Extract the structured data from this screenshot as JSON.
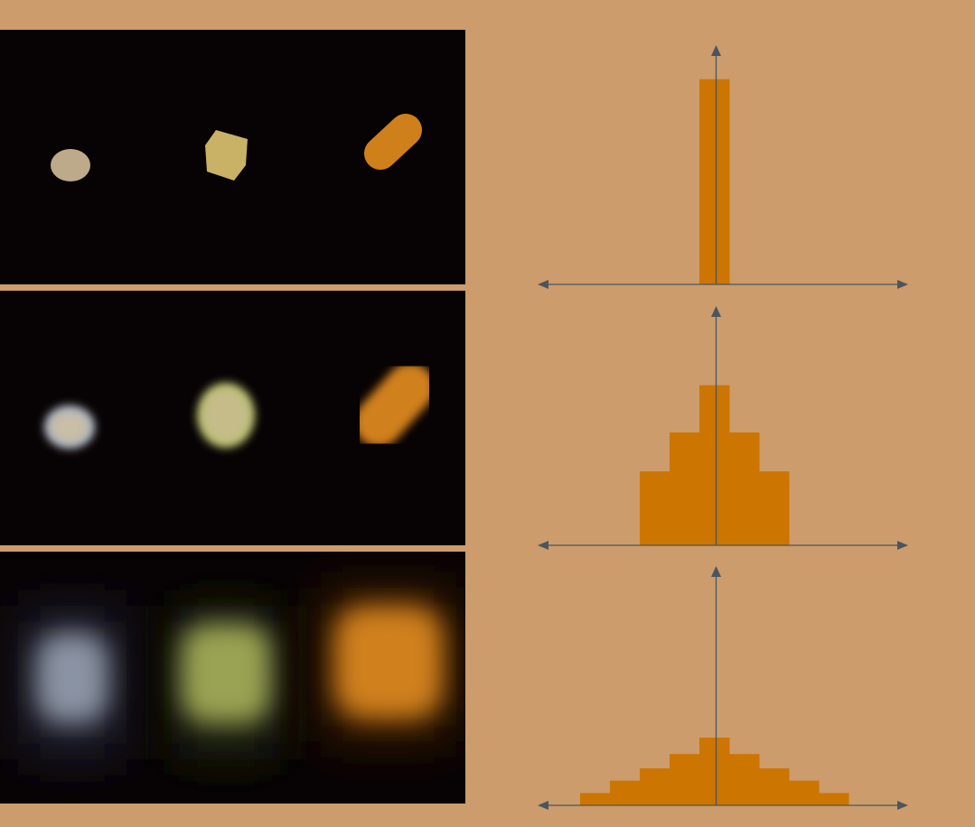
{
  "colors": {
    "page_background": "#CC9C6C",
    "panel_background": "#070203",
    "histogram_fill": "#CC7500",
    "axis": "#4A5560",
    "blob_gray": "#BDAA8A",
    "blob_yellow": "#C9B165",
    "blob_orange": "#D0801A",
    "blob_blue_gray": "#A9B3C2",
    "blob_green": "#B9C070"
  },
  "rows": [
    {
      "blur_level": "none",
      "blobs": [
        {
          "shape": "ellipse",
          "color": "blob_gray"
        },
        {
          "shape": "hexagon",
          "color": "blob_yellow"
        },
        {
          "shape": "capsule",
          "color": "blob_orange"
        }
      ],
      "kernel": [
        1
      ]
    },
    {
      "blur_level": "medium",
      "blobs": [
        {
          "shape": "ellipse",
          "color": "blob_blue_gray"
        },
        {
          "shape": "hexagon",
          "color": "blob_green"
        },
        {
          "shape": "capsule",
          "color": "blob_orange"
        }
      ],
      "kernel": [
        0.36,
        0.55,
        0.78,
        0.55,
        0.36
      ]
    },
    {
      "blur_level": "high",
      "blobs": [
        {
          "shape": "ellipse",
          "color": "blob_blue_gray"
        },
        {
          "shape": "hexagon",
          "color": "blob_green"
        },
        {
          "shape": "capsule",
          "color": "blob_orange"
        }
      ],
      "kernel": [
        0.06,
        0.12,
        0.18,
        0.25,
        0.33,
        0.25,
        0.18,
        0.12,
        0.06
      ]
    }
  ],
  "chart_data": [
    {
      "type": "bar",
      "categories": [
        "0"
      ],
      "values": [
        1
      ],
      "xlabel": "",
      "ylabel": "",
      "ylim": [
        0,
        1.1
      ],
      "grid": false,
      "axis_arrows": true
    },
    {
      "type": "bar",
      "categories": [
        "-2",
        "-1",
        "0",
        "1",
        "2"
      ],
      "values": [
        0.36,
        0.55,
        0.78,
        0.55,
        0.36
      ],
      "xlabel": "",
      "ylabel": "",
      "ylim": [
        0,
        1.1
      ],
      "grid": false,
      "axis_arrows": true
    },
    {
      "type": "bar",
      "categories": [
        "-4",
        "-3",
        "-2",
        "-1",
        "0",
        "1",
        "2",
        "3",
        "4"
      ],
      "values": [
        0.06,
        0.12,
        0.18,
        0.25,
        0.33,
        0.25,
        0.18,
        0.12,
        0.06
      ],
      "xlabel": "",
      "ylabel": "",
      "ylim": [
        0,
        1.1
      ],
      "grid": false,
      "axis_arrows": true
    }
  ]
}
